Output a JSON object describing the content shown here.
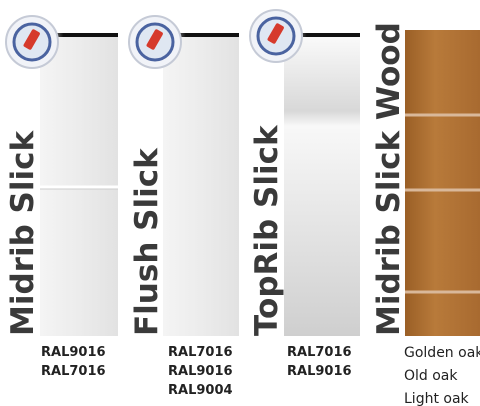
{
  "panels": [
    {
      "title": "Midrib Slick",
      "codes": [
        "RAL9016",
        "RAL7016"
      ]
    },
    {
      "title": "Flush Slick",
      "codes": [
        "RAL7016",
        "RAL9016",
        "RAL9004"
      ]
    },
    {
      "title": "TopRib Slick",
      "codes": [
        "RAL7016",
        "RAL9016"
      ]
    },
    {
      "title": "Midrib Slick Wood",
      "codes": [
        "Golden oak",
        "Old oak",
        "Light oak"
      ]
    }
  ]
}
